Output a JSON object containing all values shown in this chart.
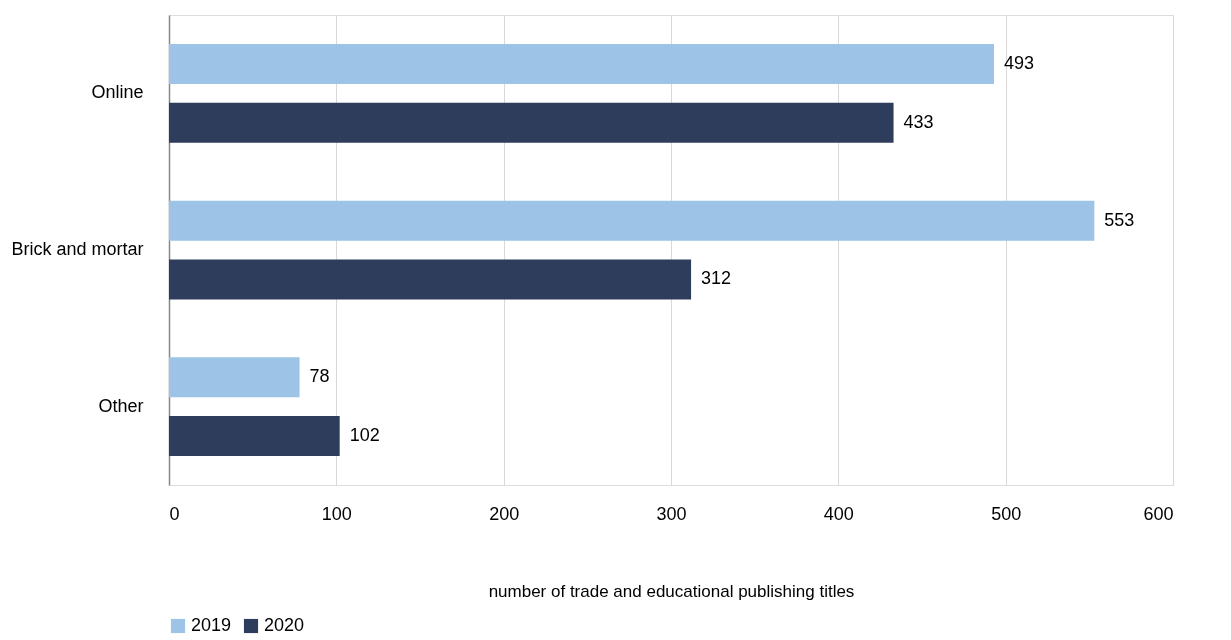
{
  "chart_data": {
    "type": "bar",
    "orientation": "horizontal",
    "xlabel": "number of trade and educational publishing titles",
    "categories": [
      "Online",
      "Brick and mortar",
      "Other"
    ],
    "series": [
      {
        "name": "2019",
        "color": "#9dc3e6",
        "values": [
          493,
          553,
          78
        ]
      },
      {
        "name": "2020",
        "color": "#2e3d5c",
        "values": [
          433,
          312,
          102
        ]
      }
    ],
    "xlim": [
      0,
      600
    ],
    "xticks": [
      0,
      100,
      200,
      300,
      400,
      500,
      600
    ],
    "grid": "x",
    "legend": "bottom",
    "data_labels": true
  }
}
